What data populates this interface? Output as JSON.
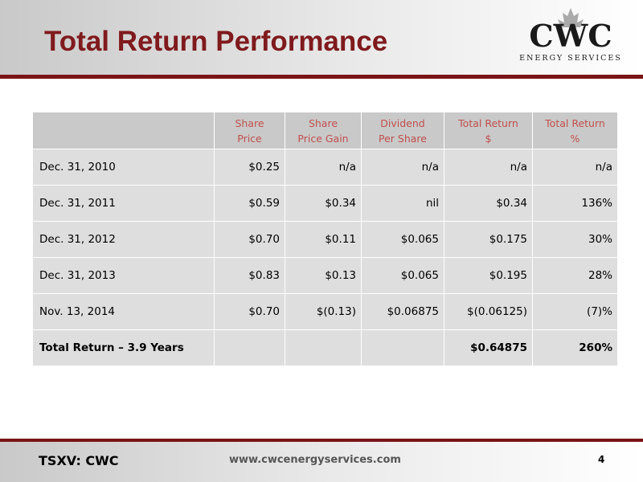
{
  "header": {
    "title": "Total Return Performance",
    "logo": {
      "name": "CWC",
      "tagline": "ENERGY SERVICES"
    }
  },
  "table": {
    "columns": [
      [
        "Share",
        "Price"
      ],
      [
        "Share",
        "Price Gain"
      ],
      [
        "Dividend",
        "Per Share"
      ],
      [
        "Total Return",
        "$"
      ],
      [
        "Total Return",
        "%"
      ]
    ],
    "rows": [
      [
        "Dec. 31, 2010",
        "$0.25",
        "n/a",
        "n/a",
        "n/a",
        "n/a"
      ],
      [
        "Dec. 31, 2011",
        "$0.59",
        "$0.34",
        "nil",
        "$0.34",
        "136%"
      ],
      [
        "Dec. 31, 2012",
        "$0.70",
        "$0.11",
        "$0.065",
        "$0.175",
        "30%"
      ],
      [
        "Dec. 31, 2013",
        "$0.83",
        "$0.13",
        "$0.065",
        "$0.195",
        "28%"
      ],
      [
        "Nov. 13, 2014",
        "$0.70",
        "$(0.13)",
        "$0.06875",
        "$(0.06125)",
        "(7)%"
      ],
      [
        "Total Return – 3.9 Years",
        null,
        null,
        null,
        "$0.64875",
        "260%"
      ]
    ]
  },
  "footer": {
    "ticker": "TSXV: CWC",
    "url": "www.cwcenergyservices.com",
    "page": "4"
  }
}
